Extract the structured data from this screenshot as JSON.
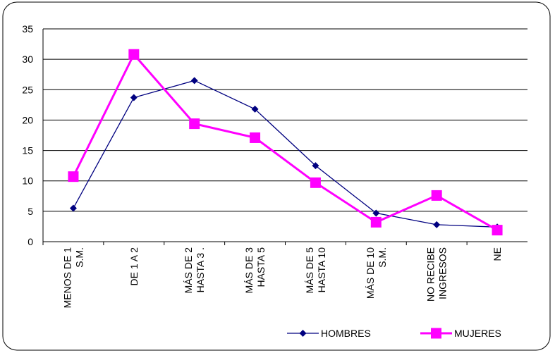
{
  "chart_data": {
    "type": "line",
    "title": "",
    "xlabel": "",
    "ylabel": "",
    "ylim": [
      0,
      35
    ],
    "yticks": [
      0,
      5,
      10,
      15,
      20,
      25,
      30,
      35
    ],
    "grid": "horizontal",
    "legend_position": "bottom-right",
    "categories": [
      [
        "MENOS DE 1",
        "S.M."
      ],
      [
        "DE 1 A 2"
      ],
      [
        "MÁS DE 2",
        "HASTA 3 ."
      ],
      [
        "MÁS DE 3",
        "HASTA 5"
      ],
      [
        "MÁS DE 5",
        "HASTA 10"
      ],
      [
        "MÁS DE 10",
        "S.M."
      ],
      [
        "NO RECIBE",
        "INGRESOS"
      ],
      [
        "NE"
      ]
    ],
    "series": [
      {
        "name": "HOMBRES",
        "color": "#000080",
        "marker": "diamond",
        "values": [
          5.5,
          23.7,
          26.5,
          21.8,
          12.5,
          4.7,
          2.8,
          2.4
        ]
      },
      {
        "name": "MUJERES",
        "color": "#ff00ff",
        "marker": "square",
        "values": [
          10.7,
          30.8,
          19.4,
          17.1,
          9.7,
          3.2,
          7.6,
          1.9
        ]
      }
    ]
  }
}
